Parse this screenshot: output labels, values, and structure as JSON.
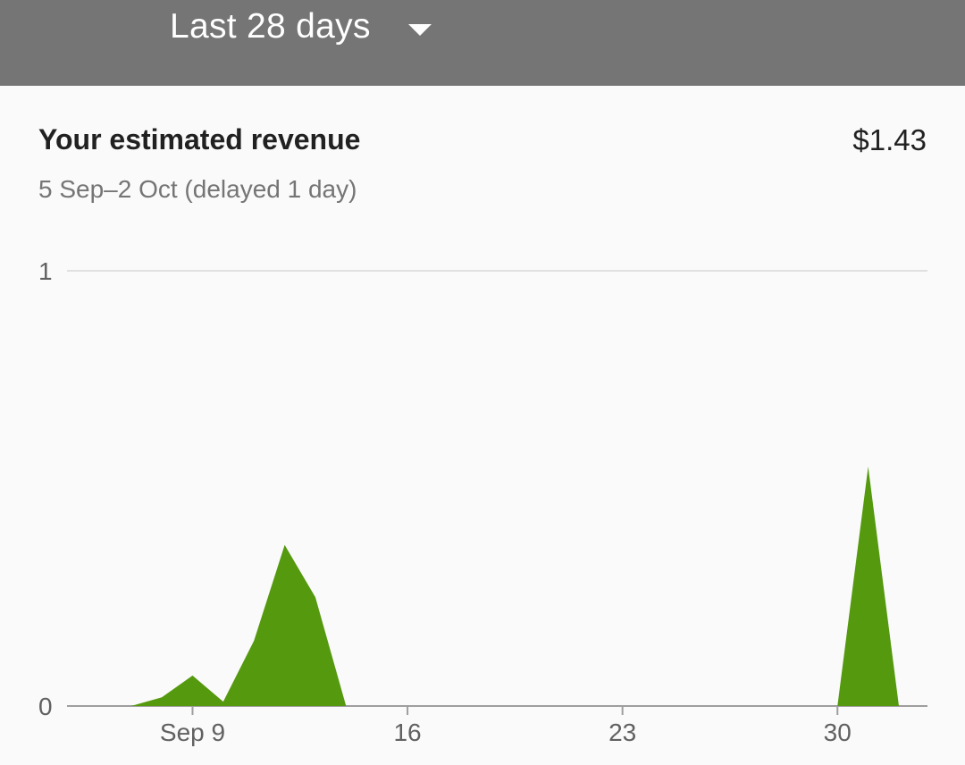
{
  "header": {
    "range_label": "Last 28 days",
    "dropdown_icon": "arrow-drop-down-icon"
  },
  "card": {
    "title": "Your estimated revenue",
    "value": "$1.43",
    "subtitle": "5 Sep–2 Oct (delayed 1 day)"
  },
  "colors": {
    "series": "#55990f",
    "grid": "#e0e0e0",
    "axis": "#9e9e9e"
  },
  "chart_data": {
    "type": "area",
    "x_start": "2018-09-05",
    "x": [
      "5 Sep",
      "6 Sep",
      "7 Sep",
      "8 Sep",
      "9 Sep",
      "10 Sep",
      "11 Sep",
      "12 Sep",
      "13 Sep",
      "14 Sep",
      "15 Sep",
      "16 Sep",
      "17 Sep",
      "18 Sep",
      "19 Sep",
      "20 Sep",
      "21 Sep",
      "22 Sep",
      "23 Sep",
      "24 Sep",
      "25 Sep",
      "26 Sep",
      "27 Sep",
      "28 Sep",
      "29 Sep",
      "30 Sep",
      "1 Oct",
      "2 Oct"
    ],
    "values": [
      0,
      0,
      0,
      0.02,
      0.07,
      0.01,
      0.15,
      0.37,
      0.25,
      0,
      0,
      0,
      0,
      0,
      0,
      0,
      0,
      0,
      0,
      0,
      0,
      0,
      0,
      0,
      0,
      0,
      0.55,
      0
    ],
    "y_ticks": [
      "0",
      "1"
    ],
    "x_ticks": [
      {
        "index": 4,
        "label": "Sep 9"
      },
      {
        "index": 11,
        "label": "16"
      },
      {
        "index": 18,
        "label": "23"
      },
      {
        "index": 25,
        "label": "30"
      }
    ],
    "ylim": [
      0,
      1
    ],
    "grid": true
  }
}
